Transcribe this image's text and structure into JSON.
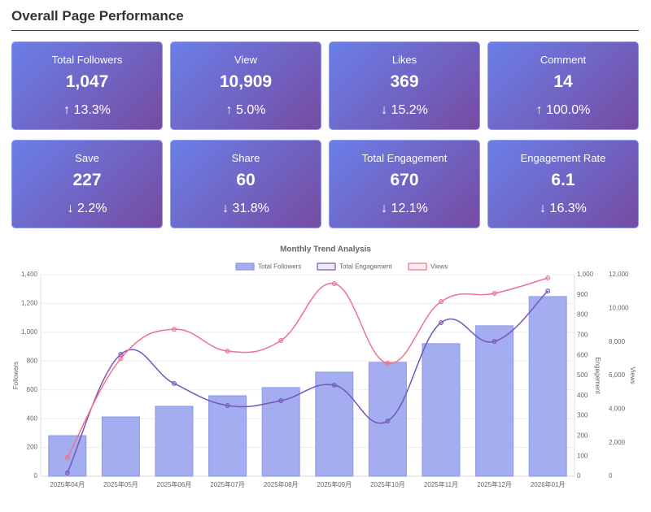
{
  "header": {
    "title": "Overall Page Performance"
  },
  "cards": [
    {
      "label": "Total Followers",
      "value": "1,047",
      "change": "↑ 13.3%"
    },
    {
      "label": "View",
      "value": "10,909",
      "change": "↑ 5.0%"
    },
    {
      "label": "Likes",
      "value": "369",
      "change": "↓ 15.2%"
    },
    {
      "label": "Comment",
      "value": "14",
      "change": "↑ 100.0%"
    },
    {
      "label": "Save",
      "value": "227",
      "change": "↓ 2.2%"
    },
    {
      "label": "Share",
      "value": "60",
      "change": "↓ 31.8%"
    },
    {
      "label": "Total Engagement",
      "value": "670",
      "change": "↓ 12.1%"
    },
    {
      "label": "Engagement Rate",
      "value": "6.1",
      "change": "↓ 16.3%"
    }
  ],
  "chart_data": {
    "type": "bar",
    "title": "Monthly Trend Analysis",
    "categories": [
      "2025年04月",
      "2025年05月",
      "2025年06月",
      "2025年07月",
      "2025年08月",
      "2025年09月",
      "2025年10月",
      "2025年11月",
      "2025年12月",
      "2026年01月"
    ],
    "series": [
      {
        "name": "Total Followers",
        "type": "bar",
        "color": "#a3adf0",
        "values": [
          282,
          412,
          486,
          559,
          616,
          723,
          791,
          921,
          1045,
          1248
        ]
      },
      {
        "name": "Total Engagement",
        "type": "line",
        "axis": "y2",
        "color": "#7657b8",
        "values": [
          16,
          605,
          460,
          351,
          375,
          452,
          274,
          762,
          669,
          919
        ]
      },
      {
        "name": "Views",
        "type": "line",
        "axis": "y3",
        "color": "#f07190",
        "values": [
          1100,
          7000,
          8750,
          7450,
          8080,
          11466,
          6725,
          10400,
          10885,
          11805
        ]
      }
    ],
    "ylabel": "Followers",
    "y2label": "Engagement",
    "y3label": "Views",
    "ylim": [
      0,
      1400
    ],
    "yticks": [
      0,
      200,
      400,
      600,
      800,
      {
        "value": 1000,
        "label": "1,000"
      },
      {
        "value": 1200,
        "label": "1,200"
      },
      {
        "value": 1400,
        "label": "1,400"
      }
    ],
    "y2lim": [
      0,
      1000
    ],
    "y2ticks": [
      0,
      100,
      200,
      300,
      400,
      500,
      600,
      700,
      800,
      900,
      {
        "value": 1000,
        "label": "1,000"
      }
    ],
    "y3lim": [
      0,
      12000
    ],
    "y3ticks": [
      0,
      {
        "value": 2000,
        "label": "2,000"
      },
      {
        "value": 4000,
        "label": "4,000"
      },
      {
        "value": 6000,
        "label": "6,000"
      },
      {
        "value": 8000,
        "label": "8,000"
      },
      {
        "value": 10000,
        "label": "10,000"
      },
      {
        "value": 12000,
        "label": "12,000"
      }
    ],
    "grid": true
  }
}
